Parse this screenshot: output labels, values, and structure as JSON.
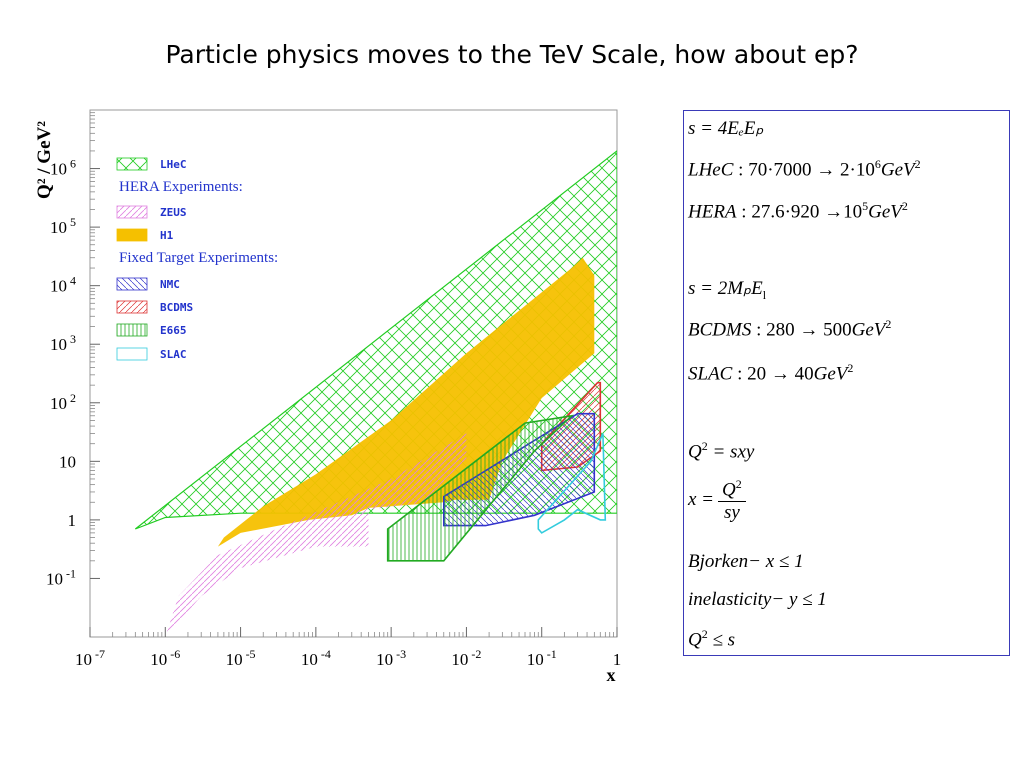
{
  "title": "Particle physics moves to the TeV Scale, how about ep?",
  "chart_data": {
    "type": "area",
    "xscale": "log",
    "yscale": "log",
    "xlim": [
      1e-07,
      1
    ],
    "ylim": [
      0.01,
      10000000
    ],
    "xlabel": "x",
    "ylabel": "Q² / GeV²",
    "xticks": [
      {
        "v": 1e-07,
        "base": "10",
        "exp": "-7"
      },
      {
        "v": 1e-06,
        "base": "10",
        "exp": "-6"
      },
      {
        "v": 1e-05,
        "base": "10",
        "exp": "-5"
      },
      {
        "v": 0.0001,
        "base": "10",
        "exp": "-4"
      },
      {
        "v": 0.001,
        "base": "10",
        "exp": "-3"
      },
      {
        "v": 0.01,
        "base": "10",
        "exp": "-2"
      },
      {
        "v": 0.1,
        "base": "10",
        "exp": "-1"
      },
      {
        "v": 1,
        "base": "1",
        "exp": ""
      }
    ],
    "yticks": [
      {
        "v": 0.1,
        "base": "10",
        "exp": "-1"
      },
      {
        "v": 1,
        "base": "1",
        "exp": ""
      },
      {
        "v": 10,
        "base": "10",
        "exp": ""
      },
      {
        "v": 100,
        "base": "10",
        "exp": "2"
      },
      {
        "v": 1000,
        "base": "10",
        "exp": "3"
      },
      {
        "v": 10000,
        "base": "10",
        "exp": "4"
      },
      {
        "v": 100000,
        "base": "10",
        "exp": "5"
      },
      {
        "v": 1000000,
        "base": "10",
        "exp": "6"
      }
    ],
    "legend_position": "top-left",
    "legend": [
      {
        "label": "LHeC",
        "style": "series",
        "color": "#22cc22",
        "pattern": "cross"
      },
      {
        "label": "HERA Experiments:",
        "style": "header",
        "color": "#2233cc"
      },
      {
        "label": "ZEUS",
        "style": "series",
        "color": "#e080e0",
        "pattern": "diag"
      },
      {
        "label": "H1",
        "style": "series",
        "color": "#f5c000",
        "pattern": "solid"
      },
      {
        "label": "Fixed Target Experiments:",
        "style": "header",
        "color": "#2233cc"
      },
      {
        "label": "NMC",
        "style": "series",
        "color": "#3333cc",
        "pattern": "diag"
      },
      {
        "label": "BCDMS",
        "style": "series",
        "color": "#dd3333",
        "pattern": "diag"
      },
      {
        "label": "E665",
        "style": "series",
        "color": "#22aa22",
        "pattern": "vert"
      },
      {
        "label": "SLAC",
        "style": "series",
        "color": "#33ccdd",
        "pattern": "none"
      }
    ],
    "regions": [
      {
        "name": "LHeC",
        "color": "#22cc22",
        "pattern": "cross",
        "points": [
          [
            4e-07,
            0.7
          ],
          [
            1e-06,
            1.1
          ],
          [
            1e-05,
            1.3
          ],
          [
            0.001,
            1.3
          ],
          [
            1,
            1.3
          ],
          [
            1,
            2000000
          ]
        ]
      },
      {
        "name": "H1",
        "color": "#f5c000",
        "pattern": "solid",
        "points": [
          [
            5e-06,
            0.35
          ],
          [
            1e-05,
            0.6
          ],
          [
            8e-05,
            1.0
          ],
          [
            0.0003,
            1.2
          ],
          [
            0.0005,
            1.6
          ],
          [
            0.005,
            2.0
          ],
          [
            0.007,
            2.2
          ],
          [
            0.02,
            2.2
          ],
          [
            0.03,
            10
          ],
          [
            0.1,
            120
          ],
          [
            0.5,
            700
          ],
          [
            0.5,
            15000
          ],
          [
            0.35,
            30000
          ],
          [
            0.25,
            20000
          ],
          [
            0.01,
            700
          ],
          [
            0.001,
            50
          ],
          [
            0.0001,
            6
          ],
          [
            2e-05,
            1.7
          ],
          [
            6e-06,
            0.5
          ]
        ]
      },
      {
        "name": "ZEUS",
        "color": "#e080e0",
        "pattern": "diag",
        "points": [
          [
            1e-06,
            0.01
          ],
          [
            3e-06,
            0.05
          ],
          [
            1e-05,
            0.15
          ],
          [
            0.0001,
            0.35
          ],
          [
            0.0005,
            0.35
          ],
          [
            0.0005,
            1.5
          ],
          [
            0.003,
            2.0
          ],
          [
            0.01,
            10
          ],
          [
            0.01,
            30
          ],
          [
            0.001,
            5
          ],
          [
            0.0002,
            2
          ],
          [
            3e-05,
            0.7
          ],
          [
            5e-06,
            0.25
          ],
          [
            1.5e-06,
            0.05
          ]
        ]
      },
      {
        "name": "BCDMS",
        "color": "#dd3333",
        "pattern": "diag",
        "points": [
          [
            0.1,
            7
          ],
          [
            0.1,
            20
          ],
          [
            0.55,
            220
          ],
          [
            0.6,
            220
          ],
          [
            0.6,
            15
          ],
          [
            0.3,
            8
          ]
        ]
      },
      {
        "name": "NMC",
        "color": "#3333cc",
        "pattern": "diag",
        "points": [
          [
            0.005,
            0.8
          ],
          [
            0.005,
            2.5
          ],
          [
            0.3,
            65
          ],
          [
            0.5,
            65
          ],
          [
            0.5,
            3
          ],
          [
            0.08,
            1.2
          ],
          [
            0.018,
            0.8
          ]
        ]
      },
      {
        "name": "E665",
        "color": "#22aa22",
        "pattern": "vert",
        "points": [
          [
            0.0009,
            0.2
          ],
          [
            0.0009,
            0.7
          ],
          [
            0.06,
            45
          ],
          [
            0.25,
            60
          ],
          [
            0.08,
            15
          ],
          [
            0.005,
            0.2
          ]
        ]
      },
      {
        "name": "SLAC",
        "color": "#33ccdd",
        "pattern": "none",
        "points": [
          [
            0.09,
            0.7
          ],
          [
            0.09,
            1.0
          ],
          [
            0.45,
            10
          ],
          [
            0.65,
            30
          ],
          [
            0.7,
            1
          ],
          [
            0.6,
            1
          ],
          [
            0.3,
            1.5
          ],
          [
            0.2,
            1.0
          ],
          [
            0.1,
            0.6
          ]
        ]
      }
    ]
  },
  "formulas": {
    "s_def": "s = 4EₑEₚ",
    "lhec_l": "LHeC",
    "lhec_v": "70·7000 → 2·10",
    "lhec_e": "6",
    "hera_l": "HERA",
    "hera_v": "27.6·920 →10",
    "hera_e": "5",
    "gev": "GeV",
    "two": "2",
    "s_fixed": "s = 2MₚE",
    "bcdms_l": "BCDMS",
    "bcdms_v": "280 → 500",
    "slac_l": "SLAC",
    "slac_v": "20 → 40",
    "q2": "Q",
    "q2_eq": "= sxy",
    "x_eq": "x =",
    "frac_num": "Q",
    "frac_den": "sy",
    "bjorken": "Bjorken− x ≤ 1",
    "inelasticity": "inelasticity− y ≤ 1",
    "q2_le": "≤ s"
  }
}
